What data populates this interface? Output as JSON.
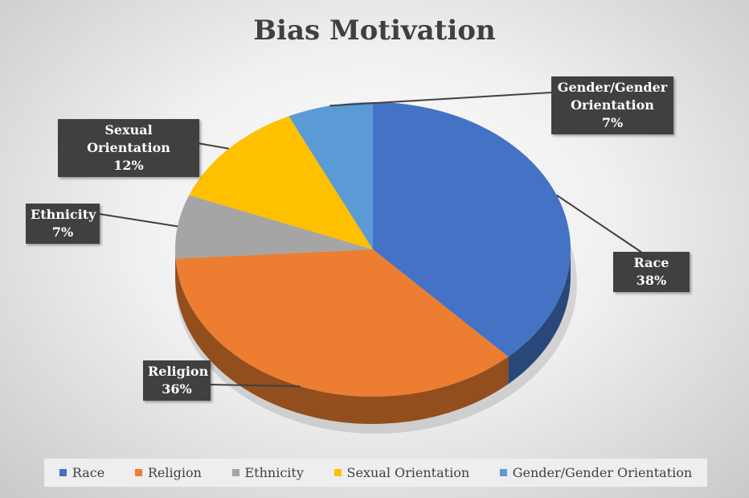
{
  "chart_data": {
    "type": "pie",
    "title": "Bias Motivation",
    "categories": [
      "Race",
      "Religion",
      "Ethnicity",
      "Sexual Orientation",
      "Gender/Gender Orientation"
    ],
    "values": [
      38,
      36,
      7,
      12,
      7
    ],
    "value_labels": [
      "38%",
      "36%",
      "7%",
      "12%",
      "7%"
    ],
    "colors": [
      "#4472c4",
      "#ed7d31",
      "#a5a5a5",
      "#ffc000",
      "#5b9bd5"
    ],
    "three_d": true,
    "legend": "bottom"
  }
}
